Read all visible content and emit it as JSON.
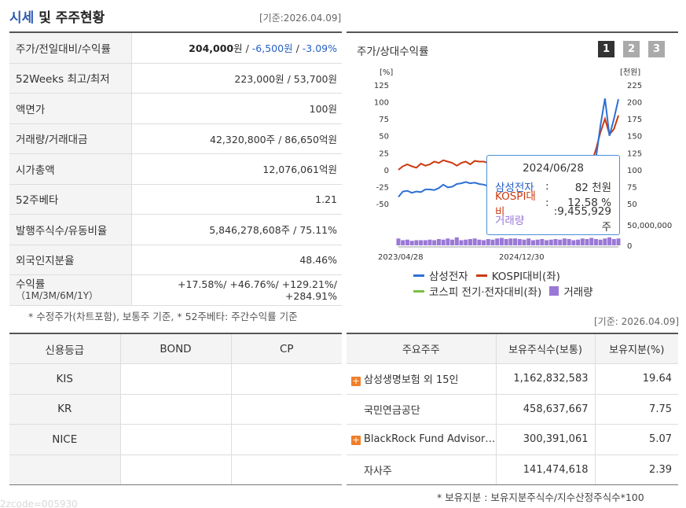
{
  "header": {
    "title_main": "시세",
    "title_rest": " 및 주주현황",
    "date": "[기준:2026.04.09]"
  },
  "info": {
    "price": {
      "label": "주가/전일대비/수익률",
      "price": "204,000",
      "unit": "원",
      "sep1": " / ",
      "change": "-6,500원",
      "sep2": " / ",
      "rate": "-3.09%"
    },
    "week52": {
      "label": "52Weeks 최고/최저",
      "value": "223,000원 / 53,700원"
    },
    "face": {
      "label": "액면가",
      "value": "100원"
    },
    "volume": {
      "label": "거래량/거래대금",
      "value": "42,320,800주 / 86,650억원"
    },
    "mcap": {
      "label": "시가총액",
      "value": "12,076,061억원"
    },
    "beta": {
      "label": "52주베타",
      "value": "1.21"
    },
    "shares": {
      "label": "발행주식수/유동비율",
      "value": "5,846,278,608주 / 75.11%"
    },
    "foreign": {
      "label": "외국인지분율",
      "value": "48.46%"
    },
    "returns": {
      "label": "수익률",
      "sublabel": "（1M/3M/6M/1Y）",
      "r1": "+17.58%",
      "r2": "+46.76%",
      "r3": "+129.21%",
      "r4": "+284.91%",
      "sep": "/ "
    },
    "note": "* 수정주가(차트포함), 보통주 기준, * 52주베타: 주간수익률 기준"
  },
  "chart": {
    "title": "주가/상대수익률",
    "pages": [
      "1",
      "2",
      "3"
    ],
    "tooltip": {
      "date": "2024/06/28",
      "k1": "삼성전자",
      "v1": "82 천원",
      "k2": "KOSPI대비",
      "v2": "12.58 %",
      "k3": "거래량",
      "v3": ":9,455,929 주",
      "colon": ":"
    },
    "legend": {
      "l1": "삼성전자",
      "l2": "KOSPI대비(좌)",
      "l3": "코스피 전기·전자대비(좌)",
      "l4": "거래량"
    }
  },
  "chart_data": {
    "type": "line",
    "left_axis_unit": "[%]",
    "right_axis_unit": "[천원]",
    "left_ticks": [
      "125",
      "100",
      "75",
      "50",
      "25",
      "0",
      "-25",
      "-50"
    ],
    "right_ticks": [
      "225",
      "200",
      "175",
      "150",
      "125",
      "100",
      "75",
      "50"
    ],
    "volume_ticks": [
      "50,000,000",
      "0"
    ],
    "x_labels": [
      "2023/04/28",
      "2024/12/30"
    ],
    "ylim_left": [
      -50,
      125
    ],
    "ylim_right": [
      50,
      225
    ],
    "colors": {
      "samsung": "#2e6fd6",
      "kospi": "#cc3a10",
      "sector": "#7ac143",
      "volume": "#9a78d6"
    },
    "series": [
      {
        "name": "삼성전자",
        "axis": "right",
        "values": [
          60,
          68,
          69,
          66,
          68,
          67,
          71,
          71,
          70,
          73,
          78,
          74,
          75,
          79,
          80,
          82,
          80,
          81,
          79,
          78,
          76,
          74,
          73,
          70,
          66,
          62,
          57,
          54,
          56,
          55,
          56,
          57,
          58,
          56,
          55,
          54,
          58,
          60,
          62,
          64,
          65,
          70,
          80,
          100,
          117,
          165,
          205,
          150,
          175,
          204
        ]
      },
      {
        "name": "KOSPI대비(좌)",
        "axis": "left",
        "values": [
          0,
          5,
          8,
          5,
          3,
          9,
          6,
          8,
          12,
          10,
          14,
          12,
          10,
          6,
          10,
          12,
          8,
          13,
          12,
          12,
          10,
          8,
          5,
          0,
          -5,
          -12,
          -18,
          -22,
          -20,
          -22,
          -21,
          -20,
          -20,
          -23,
          -24,
          -25,
          -20,
          -18,
          -15,
          -10,
          -8,
          -5,
          0,
          10,
          30,
          55,
          75,
          52,
          60,
          80
        ]
      },
      {
        "name": "거래량",
        "axis": "volume",
        "values": [
          12,
          9,
          10,
          8,
          9,
          9,
          9,
          10,
          9,
          11,
          10,
          12,
          10,
          14,
          9,
          10,
          11,
          12,
          10,
          9,
          11,
          10,
          12,
          13,
          11,
          12,
          12,
          11,
          10,
          12,
          9,
          10,
          11,
          9,
          10,
          11,
          10,
          12,
          11,
          9,
          10,
          12,
          11,
          13,
          11,
          10,
          12,
          14,
          11,
          12
        ]
      }
    ]
  },
  "credit": {
    "headers": [
      "신용등급",
      "BOND",
      "CP"
    ],
    "rows": [
      [
        "KIS",
        "",
        ""
      ],
      [
        "KR",
        "",
        ""
      ],
      [
        "NICE",
        "",
        ""
      ],
      [
        "",
        "",
        ""
      ]
    ]
  },
  "holders": {
    "date": "[기준: 2026.04.09]",
    "headers": [
      "주요주주",
      "보유주식수(보통)",
      "보유지분(%)"
    ],
    "rows": [
      {
        "name": "삼성생명보험 외 15인",
        "shares": "1,162,832,583",
        "pct": "19.64",
        "expand": true
      },
      {
        "name": "국민연금공단",
        "shares": "458,637,667",
        "pct": "7.75",
        "expand": false
      },
      {
        "name": "BlackRock Fund Advisor…",
        "shares": "300,391,061",
        "pct": "5.07",
        "expand": true
      },
      {
        "name": "자사주",
        "shares": "141,474,618",
        "pct": "2.39",
        "expand": false
      }
    ],
    "note": "* 보유지분 : 보유지분주식수/지수산정주식수*100"
  },
  "ghost_text": "2zcode=005930"
}
